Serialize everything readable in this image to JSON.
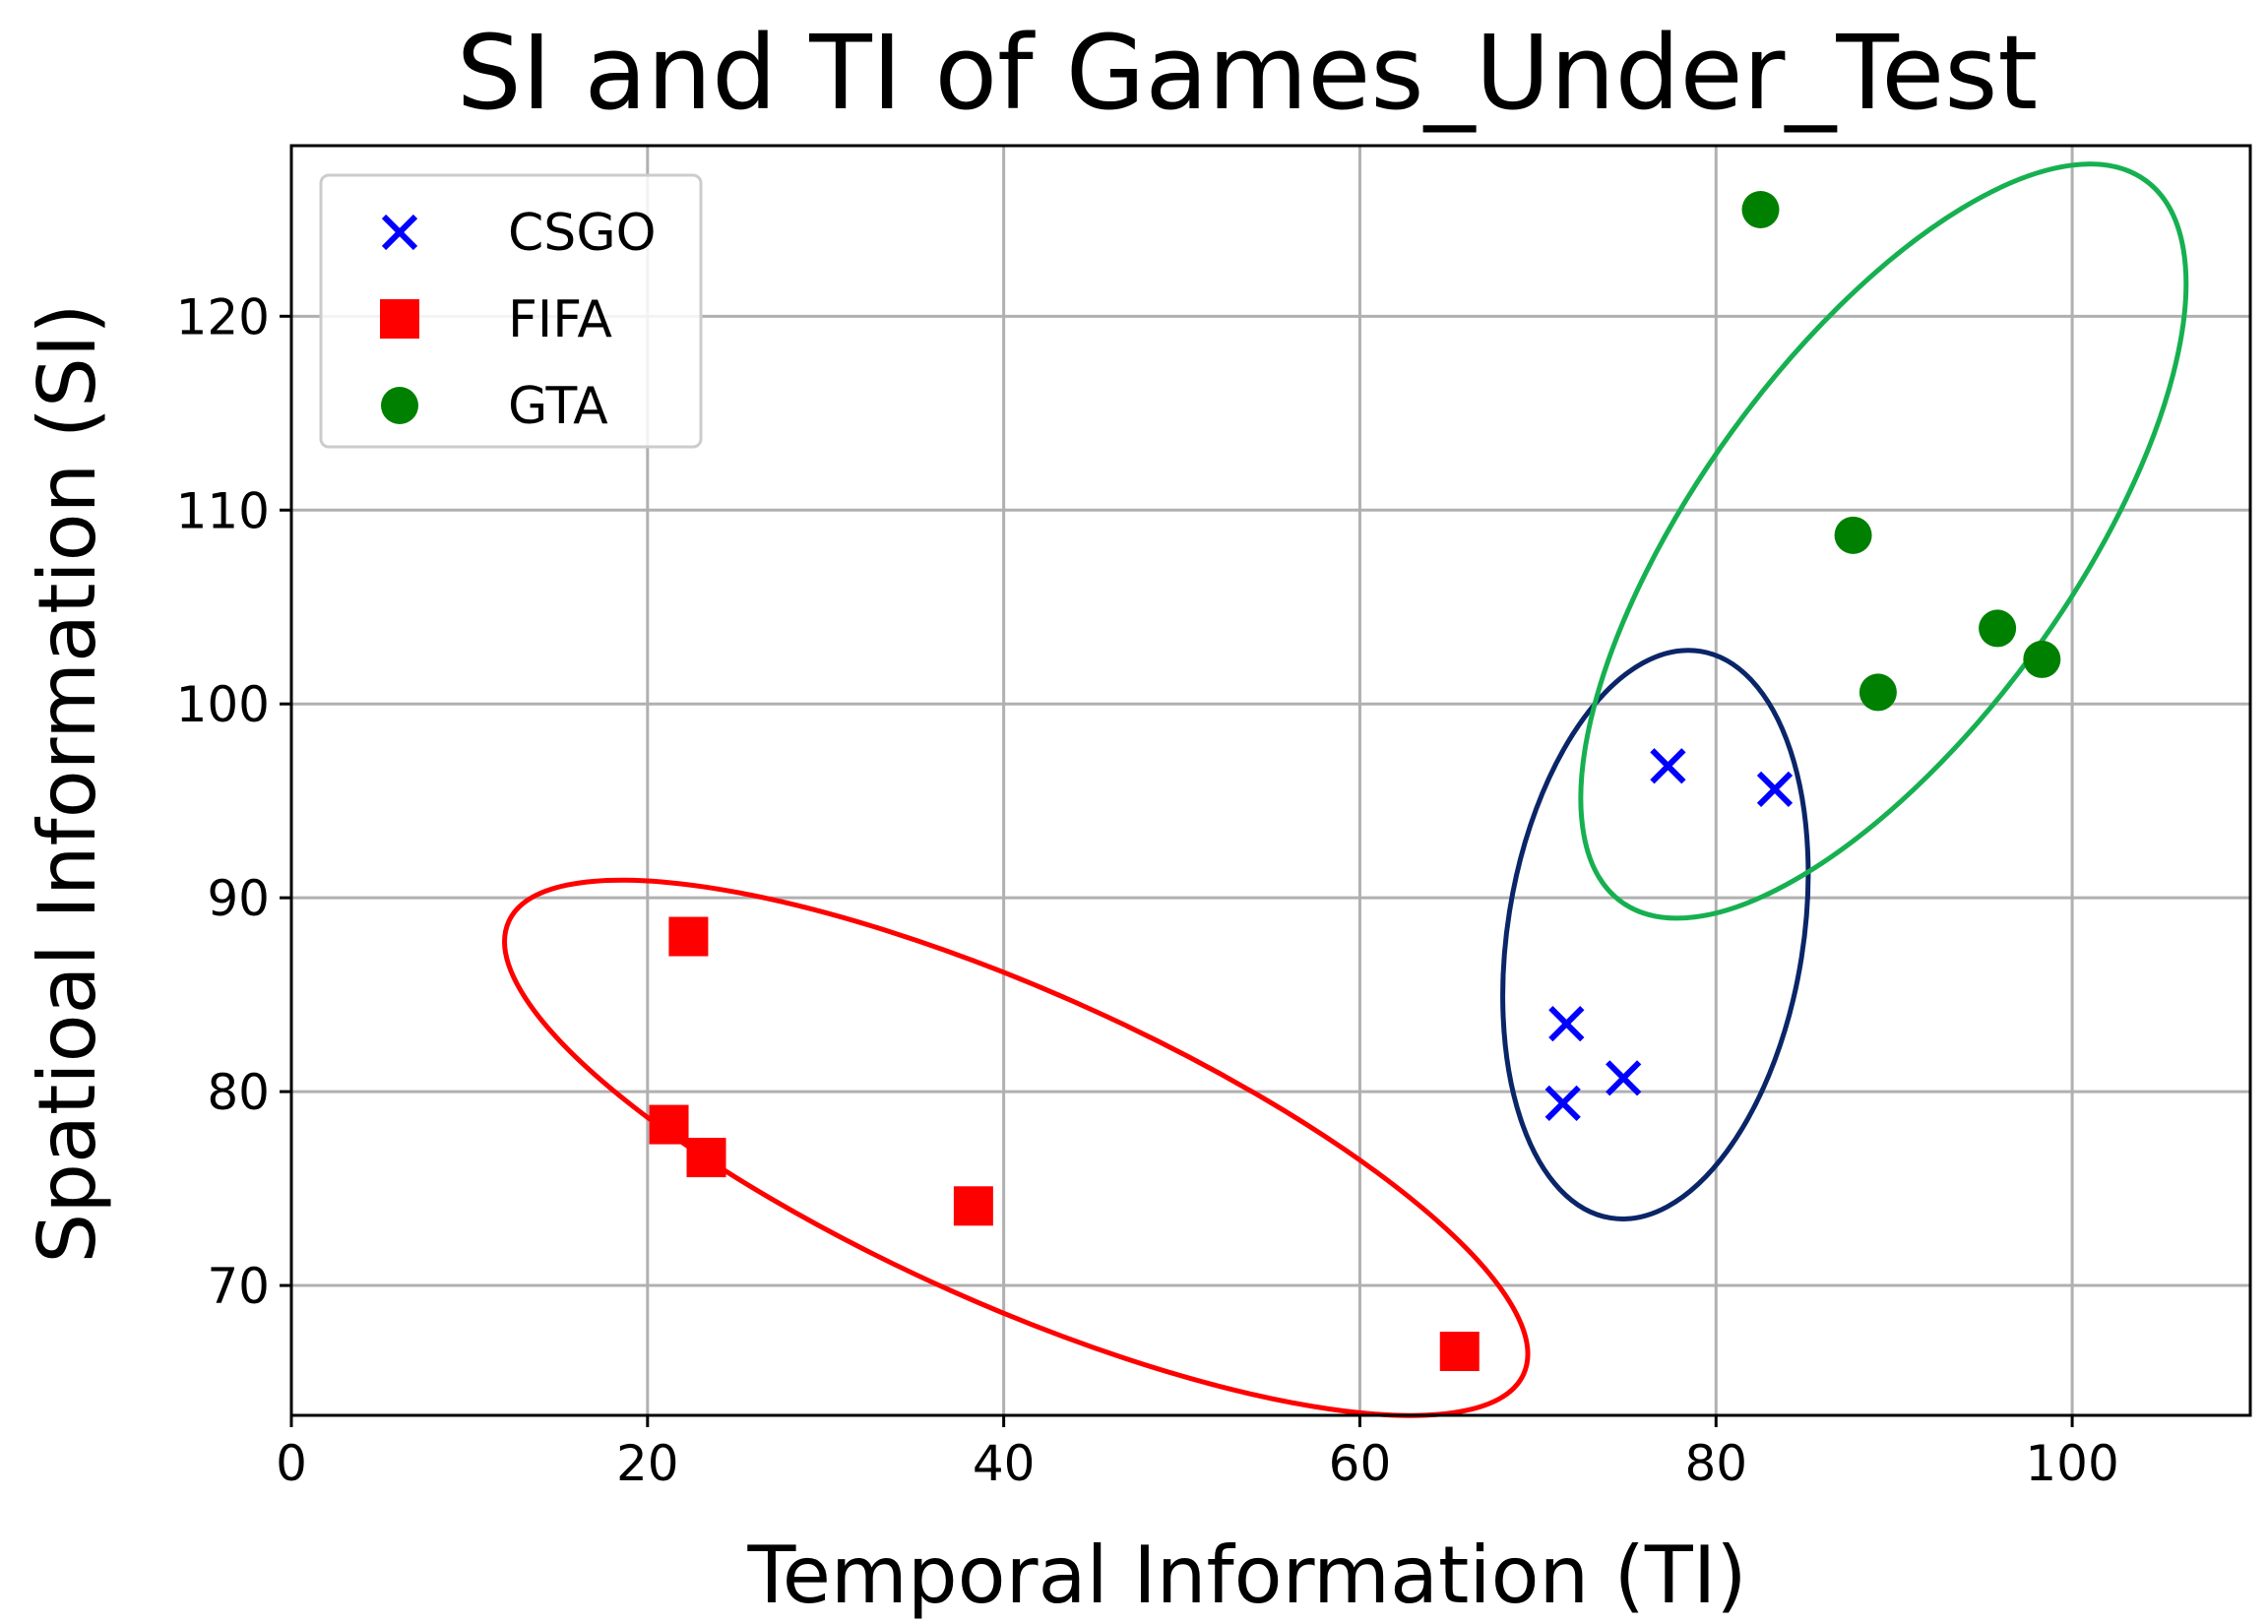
{
  "chart_data": {
    "type": "scatter",
    "title": "SI and TI of Games_Under_Test",
    "xlabel": "Temporal Information (TI)",
    "ylabel": "Spatioal Information (SI)",
    "xlim": [
      0,
      110
    ],
    "ylim": [
      63.3,
      128.8
    ],
    "xticks": [
      0,
      20,
      40,
      60,
      80,
      100
    ],
    "yticks": [
      70,
      80,
      90,
      100,
      110,
      120
    ],
    "grid": true,
    "legend": "top-left",
    "series": [
      {
        "name": "CSGO",
        "marker": "x",
        "color": "#0000ff",
        "x": [
          77.3,
          83.3,
          71.6,
          74.8,
          71.4
        ],
        "y": [
          96.8,
          95.6,
          83.5,
          80.7,
          79.4
        ]
      },
      {
        "name": "FIFA",
        "marker": "square",
        "color": "#ff0000",
        "x": [
          22.3,
          21.2,
          23.3,
          38.3,
          65.6
        ],
        "y": [
          88.0,
          78.3,
          76.6,
          74.1,
          66.6
        ]
      },
      {
        "name": "GTA",
        "marker": "circle",
        "color": "#008000",
        "x": [
          82.5,
          87.7,
          95.8,
          98.3,
          89.1
        ],
        "y": [
          125.5,
          108.7,
          103.9,
          102.3,
          100.6
        ]
      }
    ],
    "annotations": [
      {
        "type": "ellipse",
        "group": "FIFA",
        "color": "#ff0000",
        "cx": 40.7,
        "cy": 77.1,
        "rx": 31.2,
        "ry": 8.1,
        "angle_deg": 24
      },
      {
        "type": "ellipse",
        "group": "CSGO",
        "color": "#0a2568",
        "cx": 76.6,
        "cy": 88.1,
        "rx": 8.3,
        "ry": 14.8,
        "angle_deg": 9
      },
      {
        "type": "ellipse",
        "group": "GTA",
        "color": "#16b050",
        "cx": 89.4,
        "cy": 108.4,
        "rx": 10.5,
        "ry": 23.0,
        "angle_deg": 36
      }
    ]
  }
}
